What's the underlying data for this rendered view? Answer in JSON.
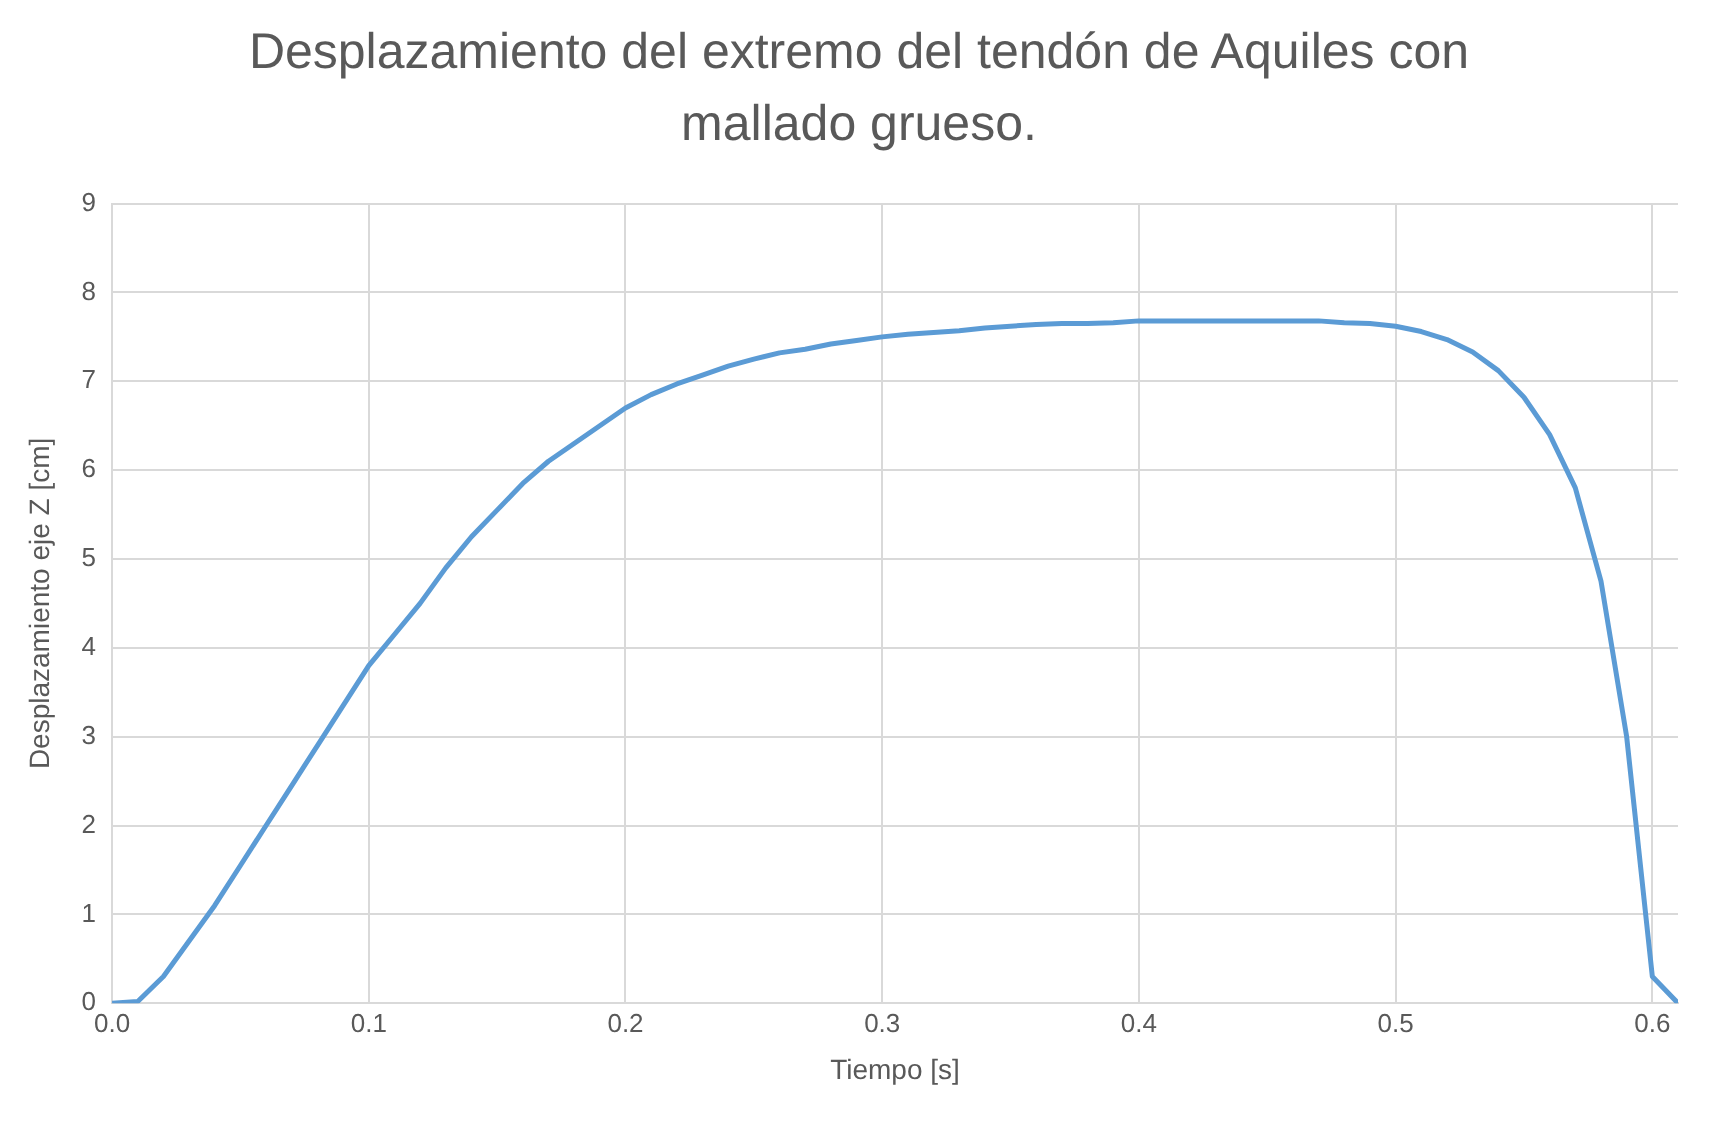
{
  "chart_data": {
    "type": "line",
    "title": "Desplazamiento del extremo del tendón de Aquiles con mallado grueso.",
    "xlabel": "Tiempo [s]",
    "ylabel": "Desplazamiento eje Z [cm]",
    "x": [
      0,
      0.01,
      0.02,
      0.03,
      0.04,
      0.05,
      0.06,
      0.07,
      0.08,
      0.09,
      0.1,
      0.11,
      0.12,
      0.13,
      0.14,
      0.15,
      0.16,
      0.17,
      0.18,
      0.19,
      0.2,
      0.21,
      0.22,
      0.23,
      0.24,
      0.25,
      0.26,
      0.27,
      0.28,
      0.29,
      0.3,
      0.31,
      0.32,
      0.33,
      0.34,
      0.35,
      0.36,
      0.37,
      0.38,
      0.39,
      0.4,
      0.41,
      0.42,
      0.43,
      0.44,
      0.45,
      0.46,
      0.47,
      0.48,
      0.49,
      0.5,
      0.51,
      0.52,
      0.53,
      0.54,
      0.55,
      0.56,
      0.57,
      0.58,
      0.59,
      0.6,
      0.61
    ],
    "series": [
      {
        "color": "#5b9bd5",
        "values": [
          0,
          0.02,
          0.3,
          0.7,
          1.1,
          1.55,
          2.0,
          2.45,
          2.9,
          3.35,
          3.8,
          4.15,
          4.5,
          4.9,
          5.25,
          5.55,
          5.85,
          6.1,
          6.3,
          6.5,
          6.7,
          6.85,
          6.97,
          7.07,
          7.17,
          7.25,
          7.32,
          7.36,
          7.42,
          7.46,
          7.5,
          7.53,
          7.55,
          7.57,
          7.6,
          7.62,
          7.64,
          7.65,
          7.65,
          7.66,
          7.68,
          7.68,
          7.68,
          7.68,
          7.68,
          7.68,
          7.68,
          7.68,
          7.66,
          7.65,
          7.62,
          7.56,
          7.47,
          7.33,
          7.12,
          6.82,
          6.4,
          5.8,
          4.75,
          3.0,
          0.3,
          0
        ]
      }
    ],
    "xlim": [
      0,
      0.61
    ],
    "xticks": [
      {
        "value": 0,
        "label": "0.0"
      },
      0.1,
      0.2,
      0.3,
      0.4,
      0.5,
      0.6
    ],
    "ylim": [
      0,
      9
    ],
    "yticks": [
      0,
      1,
      2,
      3,
      4,
      5,
      6,
      7,
      8,
      9
    ],
    "grid": true,
    "marker": "none",
    "line_style": "solid"
  }
}
